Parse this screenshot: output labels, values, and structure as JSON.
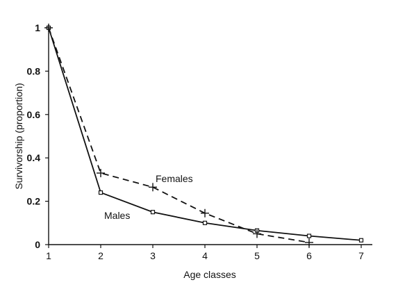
{
  "chart_data": {
    "type": "line",
    "xlabel": "Age classes",
    "ylabel": "Survivorship (proportion)",
    "x": [
      1,
      2,
      3,
      4,
      5,
      6,
      7
    ],
    "xlim": [
      1,
      7
    ],
    "ylim": [
      0,
      1
    ],
    "x_ticks": [
      "1",
      "2",
      "3",
      "4",
      "5",
      "6",
      "7"
    ],
    "y_ticks": [
      "0",
      "0.2",
      "0.4",
      "0.6",
      "0.8",
      "1"
    ],
    "grid": false,
    "series": [
      {
        "name": "Males",
        "line_style": "solid",
        "marker": "square",
        "x": [
          1,
          2,
          3,
          4,
          5,
          6,
          7
        ],
        "values": [
          1.0,
          0.24,
          0.15,
          0.1,
          0.065,
          0.04,
          0.02
        ]
      },
      {
        "name": "Females",
        "line_style": "dashed",
        "marker": "plus",
        "x": [
          1,
          2,
          3,
          4,
          5,
          6
        ],
        "values": [
          1.0,
          0.33,
          0.265,
          0.145,
          0.05,
          0.01
        ]
      }
    ]
  }
}
